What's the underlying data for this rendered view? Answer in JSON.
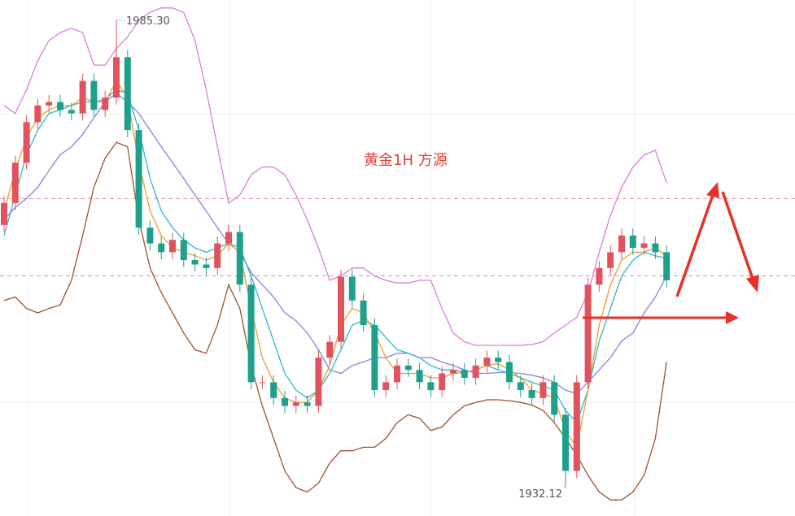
{
  "chart_data": {
    "type": "candlestick",
    "title": "黄金1H  方源",
    "ylim": [
      1928.87,
      1987.61
    ],
    "max_label": "1985.30",
    "min_label": "1932.12",
    "up_color": "#e0535d",
    "down_color": "#1fa08d",
    "reference_lines": [
      1965.0,
      1956.2
    ],
    "reference_color": "#e88a9a",
    "open": [
      1962.0,
      1964.5,
      1969.1,
      1973.7,
      1975.6,
      1976.0,
      1975.1,
      1974.7,
      1978.4,
      1975.1,
      1976.5,
      1981.1,
      1972.8,
      1961.7,
      1959.9,
      1958.9,
      1960.3,
      1958.0,
      1957.5,
      1957.1,
      1959.9,
      1961.2,
      1955.2,
      1944.1,
      1944.1,
      1942.3,
      1941.4,
      1941.8,
      1941.4,
      1946.9,
      1948.7,
      1956.1,
      1953.4,
      1950.6,
      1943.2,
      1944.1,
      1946.0,
      1945.5,
      1944.1,
      1943.2,
      1945.1,
      1945.5,
      1944.6,
      1946.0,
      1946.9,
      1946.4,
      1944.1,
      1943.2,
      1942.3,
      1944.1,
      1940.4,
      1934.0,
      1944.1,
      1955.2,
      1957.1,
      1958.9,
      1960.8,
      1959.4,
      1959.9,
      1958.9
    ],
    "high": [
      1965.3,
      1969.9,
      1974.5,
      1976.4,
      1976.8,
      1976.8,
      1975.9,
      1979.2,
      1979.2,
      1977.3,
      1985.3,
      1981.9,
      1973.6,
      1962.5,
      1960.7,
      1961.1,
      1961.1,
      1958.8,
      1958.3,
      1960.7,
      1962.0,
      1962.0,
      1956.0,
      1944.9,
      1944.9,
      1943.1,
      1942.6,
      1942.6,
      1947.7,
      1949.5,
      1956.9,
      1956.9,
      1954.2,
      1951.4,
      1944.9,
      1946.8,
      1946.8,
      1946.3,
      1944.9,
      1945.9,
      1946.3,
      1946.3,
      1946.8,
      1947.7,
      1947.7,
      1947.2,
      1944.9,
      1944.0,
      1944.9,
      1944.9,
      1941.2,
      1944.9,
      1956.0,
      1957.9,
      1959.7,
      1961.6,
      1961.6,
      1960.7,
      1960.7,
      1959.7
    ],
    "low": [
      1961.2,
      1963.7,
      1968.3,
      1972.9,
      1974.8,
      1974.3,
      1973.9,
      1973.9,
      1974.3,
      1974.3,
      1975.7,
      1972.0,
      1960.9,
      1959.1,
      1958.1,
      1958.1,
      1957.2,
      1956.7,
      1956.3,
      1956.3,
      1959.1,
      1954.4,
      1943.3,
      1943.3,
      1941.5,
      1940.6,
      1940.6,
      1940.6,
      1940.6,
      1946.1,
      1947.9,
      1952.6,
      1949.8,
      1942.4,
      1942.4,
      1943.3,
      1944.7,
      1943.3,
      1942.4,
      1942.4,
      1944.3,
      1943.8,
      1943.8,
      1945.2,
      1945.6,
      1943.3,
      1942.4,
      1941.5,
      1941.5,
      1939.6,
      1932.12,
      1933.2,
      1943.3,
      1954.4,
      1956.3,
      1958.1,
      1958.6,
      1958.6,
      1958.1,
      1954.9
    ],
    "close": [
      1964.5,
      1969.1,
      1973.7,
      1975.6,
      1976.0,
      1975.1,
      1974.7,
      1978.4,
      1975.1,
      1976.5,
      1981.1,
      1972.8,
      1961.7,
      1959.9,
      1958.9,
      1960.3,
      1958.0,
      1957.5,
      1957.1,
      1959.9,
      1961.2,
      1955.2,
      1944.1,
      1944.1,
      1942.3,
      1941.4,
      1941.8,
      1941.4,
      1946.9,
      1948.7,
      1956.1,
      1953.4,
      1950.6,
      1943.2,
      1944.1,
      1946.0,
      1945.5,
      1944.1,
      1943.2,
      1945.1,
      1945.5,
      1944.6,
      1946.0,
      1946.9,
      1946.4,
      1944.1,
      1943.2,
      1942.3,
      1944.1,
      1940.4,
      1934.0,
      1944.1,
      1955.2,
      1957.1,
      1958.9,
      1960.8,
      1959.4,
      1959.9,
      1958.9,
      1955.7
    ],
    "series": [
      {
        "color": "#d680d8",
        "values": [
          1975.6,
          1974.7,
          1977.4,
          1980.7,
          1983.0,
          1983.9,
          1984.4,
          1983.9,
          1980.2,
          1980.2,
          1982.1,
          1983.4,
          1985.3,
          1986.2,
          1986.7,
          1986.7,
          1986.2,
          1983.0,
          1977.4,
          1970.9,
          1964.5,
          1965.4,
          1967.7,
          1968.6,
          1968.6,
          1967.7,
          1965.4,
          1962.6,
          1959.4,
          1955.7,
          1956.2,
          1957.1,
          1957.1,
          1956.2,
          1955.7,
          1955.4,
          1955.4,
          1955.7,
          1955.7,
          1952.5,
          1949.7,
          1948.7,
          1948.3,
          1948.3,
          1948.3,
          1948.3,
          1948.3,
          1948.4,
          1948.7,
          1949.7,
          1950.6,
          1951.5,
          1954.3,
          1958.9,
          1963.1,
          1966.3,
          1968.6,
          1970.0,
          1970.5,
          1966.8
        ]
      },
      {
        "color": "#a0522d",
        "values": [
          1953.4,
          1953.8,
          1952.5,
          1952.0,
          1952.5,
          1952.9,
          1955.7,
          1960.8,
          1966.3,
          1969.6,
          1971.4,
          1970.9,
          1962.6,
          1957.1,
          1954.3,
          1952.0,
          1949.7,
          1947.8,
          1947.4,
          1950.6,
          1955.2,
          1952.5,
          1946.0,
          1941.4,
          1937.7,
          1934.0,
          1932.1,
          1931.6,
          1932.6,
          1934.9,
          1936.3,
          1936.3,
          1936.7,
          1936.7,
          1937.7,
          1939.5,
          1940.4,
          1940.0,
          1938.6,
          1939.0,
          1940.4,
          1941.4,
          1941.8,
          1942.1,
          1942.1,
          1942.0,
          1941.8,
          1941.5,
          1940.9,
          1939.5,
          1937.7,
          1935.8,
          1933.5,
          1931.6,
          1930.7,
          1930.7,
          1931.6,
          1933.5,
          1937.7,
          1946.4
        ]
      },
      {
        "color": "#8b7fe2",
        "values": [
          1962.6,
          1964.0,
          1965.0,
          1966.3,
          1968.2,
          1970.0,
          1970.9,
          1972.3,
          1974.2,
          1976.0,
          1977.0,
          1976.0,
          1974.7,
          1972.8,
          1970.9,
          1969.1,
          1967.3,
          1965.4,
          1963.6,
          1961.7,
          1959.9,
          1958.9,
          1956.6,
          1955.2,
          1953.8,
          1952.0,
          1951.1,
          1949.7,
          1947.8,
          1945.5,
          1945.1,
          1946.0,
          1946.4,
          1946.9,
          1946.9,
          1947.4,
          1947.4,
          1946.9,
          1946.9,
          1946.4,
          1946.0,
          1945.5,
          1945.1,
          1945.1,
          1945.2,
          1945.2,
          1945.1,
          1944.9,
          1944.6,
          1944.1,
          1943.2,
          1942.8,
          1944.1,
          1945.5,
          1946.9,
          1948.8,
          1949.7,
          1952.0,
          1953.8,
          1956.2
        ]
      },
      {
        "color": "#2cb9c9",
        "values": [
          1960.8,
          1965.4,
          1970.0,
          1972.8,
          1974.7,
          1975.1,
          1975.6,
          1976.0,
          1976.0,
          1976.3,
          1977.4,
          1977.0,
          1972.8,
          1967.3,
          1963.6,
          1961.7,
          1960.3,
          1959.4,
          1958.9,
          1959.4,
          1959.9,
          1959.4,
          1956.2,
          1952.5,
          1948.8,
          1945.1,
          1943.2,
          1942.3,
          1943.2,
          1945.1,
          1947.8,
          1950.6,
          1951.1,
          1950.6,
          1949.2,
          1947.8,
          1947.4,
          1946.9,
          1946.0,
          1945.5,
          1945.5,
          1945.2,
          1945.5,
          1946.0,
          1945.5,
          1945.1,
          1944.6,
          1944.1,
          1943.7,
          1943.2,
          1940.9,
          1939.5,
          1943.2,
          1948.8,
          1952.5,
          1956.2,
          1958.0,
          1958.9,
          1958.5,
          1958.2
        ]
      },
      {
        "color": "#f39a33",
        "values": [
          1963.6,
          1968.2,
          1971.9,
          1974.2,
          1975.1,
          1975.6,
          1975.6,
          1976.5,
          1976.0,
          1976.0,
          1978.4,
          1976.5,
          1969.1,
          1963.6,
          1960.8,
          1959.4,
          1958.9,
          1958.5,
          1958.0,
          1958.5,
          1959.9,
          1958.9,
          1952.5,
          1946.9,
          1944.1,
          1942.3,
          1941.8,
          1941.8,
          1943.2,
          1946.0,
          1950.6,
          1952.5,
          1952.0,
          1949.7,
          1946.9,
          1945.1,
          1945.1,
          1945.1,
          1944.6,
          1944.6,
          1945.1,
          1945.2,
          1945.5,
          1946.0,
          1946.2,
          1945.5,
          1944.6,
          1943.2,
          1942.8,
          1942.3,
          1938.6,
          1936.7,
          1943.2,
          1950.6,
          1955.2,
          1958.0,
          1958.9,
          1958.9,
          1959.4,
          1958.5
        ]
      }
    ]
  }
}
